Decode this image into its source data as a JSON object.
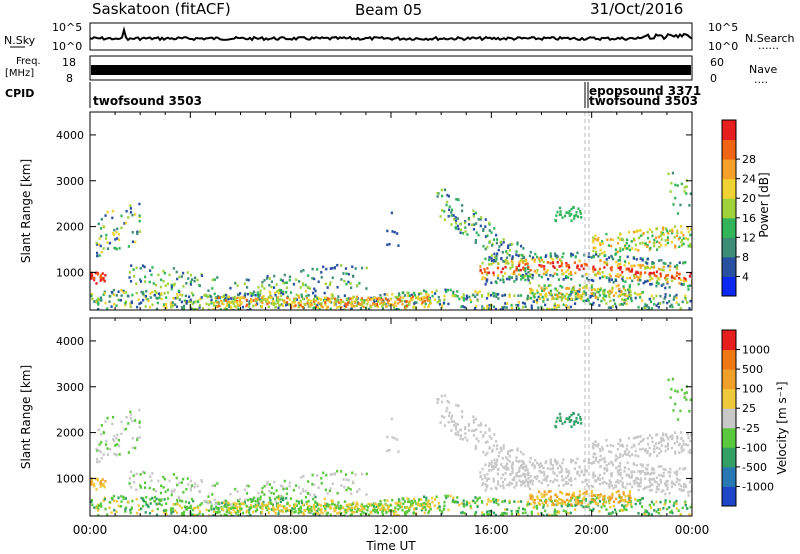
{
  "header": {
    "station": "Saskatoon (fitACF)",
    "beam": "Beam 05",
    "date": "31/Oct/2016"
  },
  "nsky_panel": {
    "left_label": "N.Sky",
    "left_ticks": [
      "10^5",
      "10^0"
    ],
    "right_ticks": [
      "10^5",
      "10^0"
    ],
    "right_label": "N.Search",
    "right_legend": "......"
  },
  "freq_panel": {
    "left_label_1": "Freq.",
    "left_label_2": "[MHz]",
    "left_ticks": [
      "18",
      "8"
    ],
    "right_ticks": [
      "60",
      "0"
    ],
    "right_label": "Nave",
    "right_legend": "...."
  },
  "cpid_panel": {
    "label": "CPID",
    "entries": [
      "twofsound 3503",
      "epopsound 3371",
      "twofsound 3503"
    ]
  },
  "chart_data": [
    {
      "type": "heatmap",
      "ylabel": "Slant Range [km]",
      "xlabel": "",
      "y_ticks": [
        "1000",
        "2000",
        "3000",
        "4000"
      ],
      "ylim": [
        180,
        4500
      ],
      "colorbar": {
        "label": "Power [dB]",
        "ticks": [
          "4",
          "8",
          "12",
          "16",
          "20",
          "24",
          "28"
        ],
        "colors": [
          "#0a28f0",
          "#2850a0",
          "#3c8c78",
          "#32b45a",
          "#a0d23c",
          "#f0d232",
          "#f5a028",
          "#f06414",
          "#e61e1e"
        ]
      }
    },
    {
      "type": "heatmap",
      "ylabel": "Slant Range [km]",
      "xlabel": "Time UT",
      "x_ticks": [
        "00:00",
        "04:00",
        "08:00",
        "12:00",
        "16:00",
        "20:00",
        "00:00"
      ],
      "y_ticks": [
        "1000",
        "2000",
        "3000",
        "4000"
      ],
      "ylim": [
        180,
        4500
      ],
      "colorbar": {
        "label": "Velocity [m s⁻¹]",
        "ticks": [
          "1000",
          "500",
          "100",
          "25",
          "-25",
          "-100",
          "-500",
          "-1000"
        ],
        "colors": [
          "#1e46c8",
          "#2878b4",
          "#32a064",
          "#5ac83c",
          "#c8c8c8",
          "#f0c83c",
          "#f0a028",
          "#f07814",
          "#e61e1e"
        ]
      }
    }
  ]
}
